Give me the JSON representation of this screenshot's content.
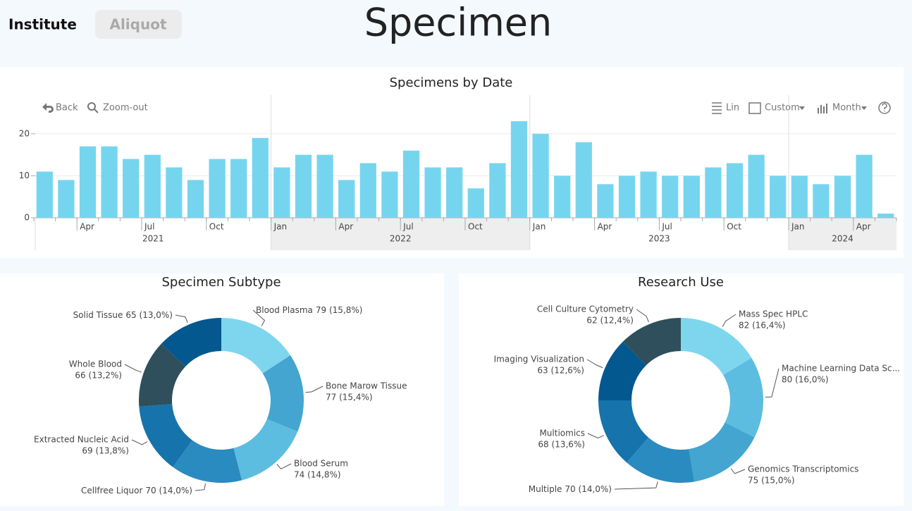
{
  "tabs": [
    "Institute",
    "Aliquot"
  ],
  "title": "Specimen",
  "toolbar": {
    "back": "Back",
    "zoom_out": "Zoom-out",
    "scale": "Lin",
    "range": "Custom",
    "period": "Month"
  },
  "chart_data": [
    {
      "type": "bar",
      "title": "Specimens by Date",
      "color": "#76d5ee",
      "x": [
        "2021-02",
        "2021-03",
        "2021-04",
        "2021-05",
        "2021-06",
        "2021-07",
        "2021-08",
        "2021-09",
        "2021-10",
        "2021-11",
        "2021-12",
        "2022-01",
        "2022-02",
        "2022-03",
        "2022-04",
        "2022-05",
        "2022-06",
        "2022-07",
        "2022-08",
        "2022-09",
        "2022-10",
        "2022-11",
        "2022-12",
        "2023-01",
        "2023-02",
        "2023-03",
        "2023-04",
        "2023-05",
        "2023-06",
        "2023-07",
        "2023-08",
        "2023-09",
        "2023-10",
        "2023-11",
        "2023-12",
        "2024-01",
        "2024-02",
        "2024-03",
        "2024-04",
        "2024-05"
      ],
      "values": [
        11,
        9,
        17,
        17,
        14,
        15,
        12,
        9,
        14,
        14,
        19,
        12,
        15,
        15,
        9,
        13,
        11,
        16,
        12,
        12,
        7,
        13,
        23,
        20,
        10,
        18,
        8,
        10,
        11,
        10,
        10,
        12,
        13,
        15,
        10,
        10,
        8,
        10,
        15,
        1
      ],
      "xticks": [
        {
          "value": "2021-04",
          "label": "Apr"
        },
        {
          "value": "2021-07",
          "label": "Jul"
        },
        {
          "value": "2021-10",
          "label": "Oct"
        },
        {
          "value": "2022-01",
          "label": "Jan"
        },
        {
          "value": "2022-04",
          "label": "Apr"
        },
        {
          "value": "2022-07",
          "label": "Jul"
        },
        {
          "value": "2022-10",
          "label": "Oct"
        },
        {
          "value": "2023-01",
          "label": "Jan"
        },
        {
          "value": "2023-04",
          "label": "Apr"
        },
        {
          "value": "2023-07",
          "label": "Jul"
        },
        {
          "value": "2023-10",
          "label": "Oct"
        },
        {
          "value": "2024-01",
          "label": "Jan"
        },
        {
          "value": "2024-04",
          "label": "Apr"
        }
      ],
      "years": [
        "2021",
        "2022",
        "2023",
        "2024"
      ],
      "ylim": [
        0,
        25
      ],
      "yticks": [
        0,
        10,
        20
      ],
      "grid": true
    },
    {
      "type": "pie",
      "title": "Specimen Subtype",
      "categories": [
        "Blood Plasma",
        "Bone Marow Tissue",
        "Blood Serum",
        "Cellfree Liquor",
        "Extracted Nucleic Acid",
        "Whole Blood",
        "Solid Tissue"
      ],
      "values": [
        79,
        77,
        74,
        70,
        69,
        66,
        65
      ],
      "value_labels": [
        "79 (15,8%)",
        "77 (15,4%)",
        "74 (14,8%)",
        "70 (14,0%)",
        "69 (13,8%)",
        "66 (13,2%)",
        "65 (13,0%)"
      ],
      "colors": [
        "#7dd6ee",
        "#43a5d0",
        "#5cbde0",
        "#2a8bc0",
        "#1673ab",
        "#2e4f5b",
        "#03588f"
      ]
    },
    {
      "type": "pie",
      "title": "Research Use",
      "categories": [
        "Mass Spec HPLC",
        "Machine Learning Data Sc...",
        "Genomics Transcriptomics",
        "Multiple",
        "Multiomics",
        "Imaging Visualization",
        "Cell Culture Cytometry"
      ],
      "values": [
        82,
        80,
        75,
        70,
        68,
        63,
        62
      ],
      "value_labels": [
        "82 (16,4%)",
        "80 (16,0%)",
        "75 (15,0%)",
        "70 (14,0%)",
        "68 (13,6%)",
        "63 (12,6%)",
        "62 (12,4%)"
      ],
      "colors": [
        "#7dd6ee",
        "#5cbde0",
        "#43a5d0",
        "#2a8bc0",
        "#1673ab",
        "#03588f",
        "#2e4f5b"
      ]
    }
  ]
}
